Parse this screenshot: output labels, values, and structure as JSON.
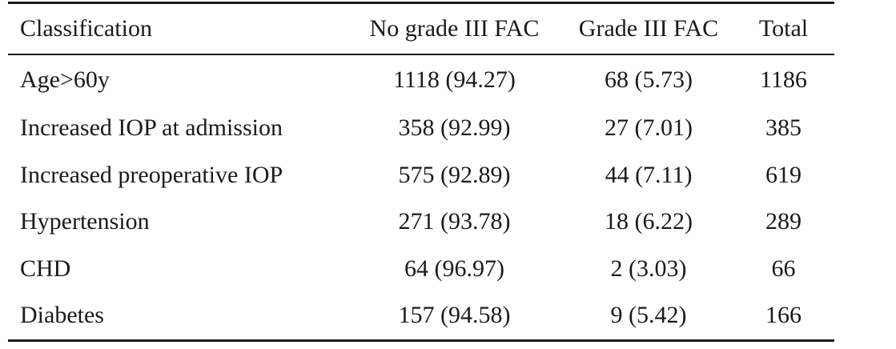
{
  "table": {
    "headers": [
      "Classification",
      "No grade III FAC",
      "Grade III FAC",
      "Total"
    ],
    "rows": [
      [
        "Age>60y",
        "1118 (94.27)",
        "68 (5.73)",
        "1186"
      ],
      [
        "Increased IOP at admission",
        "358 (92.99)",
        "27 (7.01)",
        "385"
      ],
      [
        "Increased preoperative IOP",
        "575 (92.89)",
        "44 (7.11)",
        "619"
      ],
      [
        "Hypertension",
        "271 (93.78)",
        "18 (6.22)",
        "289"
      ],
      [
        "CHD",
        "64 (96.97)",
        "2 (3.03)",
        "66"
      ],
      [
        "Diabetes",
        "157 (94.58)",
        "9 (5.42)",
        "166"
      ]
    ]
  }
}
